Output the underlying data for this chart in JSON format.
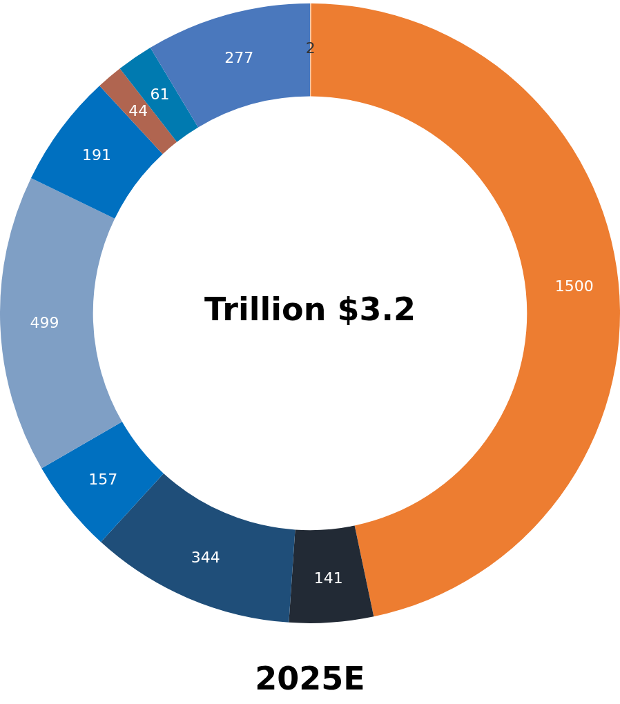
{
  "chart_data": {
    "type": "donut",
    "title": "Trillion $3.2",
    "annotations": [
      "2025E"
    ],
    "categories": [
      null,
      null,
      null,
      null,
      null,
      null,
      null,
      null,
      null,
      null
    ],
    "values": [
      2,
      1500,
      141,
      344,
      157,
      499,
      191,
      44,
      61,
      277
    ],
    "colors": [
      "#f8cbad",
      "#ed7d31",
      "#222a35",
      "#1f4e79",
      "#0070c0",
      "#7f9fc5",
      "#0070c0",
      "#b06550",
      "#007ab0",
      "#4a78bd"
    ],
    "data_labels": true
  }
}
